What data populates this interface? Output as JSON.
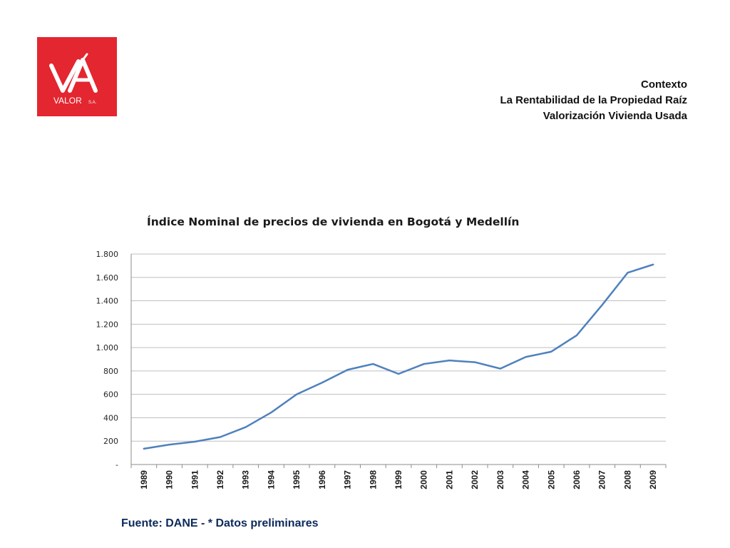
{
  "logo": {
    "text": "VALOR",
    "suffix": "S.A.",
    "color": "#e32630"
  },
  "header": {
    "line1": "Contexto",
    "line2": "La Rentabilidad de la Propiedad Raíz",
    "line3": "Valorización Vivienda Usada"
  },
  "source": "Fuente:  DANE - * Datos preliminares",
  "chart_data": {
    "type": "line",
    "title": "Índice Nominal de precios de vivienda en  Bogotá y Medellín",
    "x": [
      "1989",
      "1990",
      "1991",
      "1992",
      "1993",
      "1994",
      "1995",
      "1996",
      "1997",
      "1998",
      "1999",
      "2000",
      "2001",
      "2002",
      "2003",
      "2004",
      "2005",
      "2006",
      "2007",
      "2008",
      "2009"
    ],
    "series": [
      {
        "values": [
          135,
          170,
          195,
          235,
          320,
          445,
          600,
          700,
          810,
          860,
          775,
          860,
          890,
          875,
          820,
          920,
          965,
          1105,
          1365,
          1640,
          1710
        ],
        "color": "#4f81bd"
      }
    ],
    "yticks": [
      {
        "value": 0,
        "label": "-"
      },
      {
        "value": 200,
        "label": "200"
      },
      {
        "value": 400,
        "label": "400"
      },
      {
        "value": 600,
        "label": "600"
      },
      {
        "value": 800,
        "label": "800"
      },
      {
        "value": 1000,
        "label": "1.000"
      },
      {
        "value": 1200,
        "label": "1.200"
      },
      {
        "value": 1400,
        "label": "1.400"
      },
      {
        "value": 1600,
        "label": "1.600"
      },
      {
        "value": 1800,
        "label": "1.800"
      }
    ],
    "ylim": [
      0,
      1800
    ],
    "grid": true,
    "legend": false
  }
}
